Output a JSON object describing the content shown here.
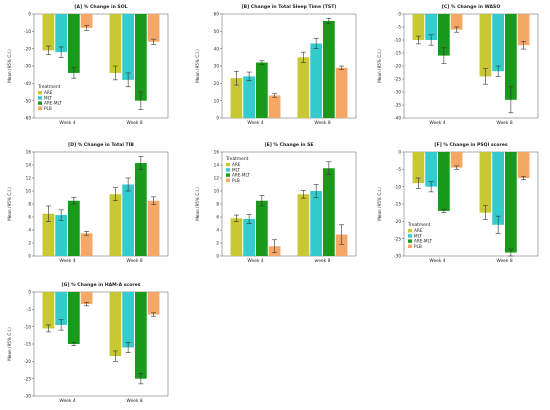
{
  "colors": {
    "ARE": "#c8c832",
    "MLT": "#33cccc",
    "ARE-MLT": "#1a9a1a",
    "PLB": "#f5a866"
  },
  "chart_data": [
    {
      "id": "A",
      "type": "bar",
      "title": "[A] % Change in SOL",
      "ylabel": "Mean (95% C.I.)",
      "xlabel": "",
      "categories": [
        "Week 4",
        "Week 8"
      ],
      "ylim": [
        -60,
        0
      ],
      "yticks": [
        0,
        -10,
        -20,
        -30,
        -40,
        -50,
        -60
      ],
      "series": [
        {
          "name": "ARE",
          "values": [
            -21,
            -34
          ],
          "err": [
            2.5,
            4
          ]
        },
        {
          "name": "MLT",
          "values": [
            -22,
            -38
          ],
          "err": [
            3,
            4
          ]
        },
        {
          "name": "ARE-MLT",
          "values": [
            -34,
            -50
          ],
          "err": [
            3,
            5
          ]
        },
        {
          "name": "PLB",
          "values": [
            -8,
            -16
          ],
          "err": [
            1.5,
            1.5
          ]
        }
      ],
      "legend": {
        "title": "Treatment",
        "position": "bottom-left",
        "items": [
          "ARE",
          "MLT",
          "ARE-MLT",
          "PLB"
        ]
      }
    },
    {
      "id": "B",
      "type": "bar",
      "title": "[B] Change in Total Sleep Time (TST)",
      "ylabel": "Mean (95% C.I.)",
      "xlabel": "",
      "categories": [
        "Week 4",
        "Week 8"
      ],
      "ylim": [
        0,
        60
      ],
      "yticks": [
        0,
        10,
        20,
        30,
        40,
        50,
        60
      ],
      "series": [
        {
          "name": "ARE",
          "values": [
            23,
            35
          ],
          "err": [
            4,
            3
          ]
        },
        {
          "name": "MLT",
          "values": [
            24,
            43
          ],
          "err": [
            2.5,
            3
          ]
        },
        {
          "name": "ARE-MLT",
          "values": [
            32,
            56
          ],
          "err": [
            1,
            1.5
          ]
        },
        {
          "name": "PLB",
          "values": [
            13,
            29
          ],
          "err": [
            1,
            1
          ]
        }
      ]
    },
    {
      "id": "C",
      "type": "bar",
      "title": "[C] % Change in WASO",
      "ylabel": "Mean (95% C.I.)",
      "xlabel": "",
      "categories": [
        "Week 4",
        "Week 8"
      ],
      "ylim": [
        -40,
        0
      ],
      "yticks": [
        0,
        -5,
        -10,
        -15,
        -20,
        -25,
        -30,
        -35,
        -40
      ],
      "series": [
        {
          "name": "ARE",
          "values": [
            -10,
            -24
          ],
          "err": [
            1.5,
            3
          ]
        },
        {
          "name": "MLT",
          "values": [
            -10,
            -22
          ],
          "err": [
            2,
            2
          ]
        },
        {
          "name": "ARE-MLT",
          "values": [
            -16,
            -33
          ],
          "err": [
            3,
            5
          ]
        },
        {
          "name": "PLB",
          "values": [
            -6,
            -12
          ],
          "err": [
            1,
            1.5
          ]
        }
      ]
    },
    {
      "id": "D",
      "type": "bar",
      "title": "[D] % Change in Total TIB",
      "ylabel": "Mean (95% C.I.)",
      "xlabel": "",
      "categories": [
        "Week 4",
        "Week 8"
      ],
      "ylim": [
        0,
        16
      ],
      "yticks": [
        0,
        2,
        4,
        6,
        8,
        10,
        12,
        14,
        16
      ],
      "series": [
        {
          "name": "ARE",
          "values": [
            6.5,
            9.5
          ],
          "err": [
            1.2,
            1
          ]
        },
        {
          "name": "MLT",
          "values": [
            6.3,
            11
          ],
          "err": [
            0.8,
            1
          ]
        },
        {
          "name": "ARE-MLT",
          "values": [
            8.5,
            14.3
          ],
          "err": [
            0.5,
            1
          ]
        },
        {
          "name": "PLB",
          "values": [
            3.5,
            8.5
          ],
          "err": [
            0.3,
            0.6
          ]
        }
      ]
    },
    {
      "id": "E",
      "type": "bar",
      "title": "[E] % Change in SE",
      "ylabel": "Mean (95% C.I.)",
      "xlabel": "",
      "categories": [
        "Week 4",
        "week 8"
      ],
      "ylim": [
        0,
        16
      ],
      "yticks": [
        0,
        2,
        4,
        6,
        8,
        10,
        12,
        14,
        16
      ],
      "series": [
        {
          "name": "ARE",
          "values": [
            5.8,
            9.5
          ],
          "err": [
            0.5,
            0.6
          ]
        },
        {
          "name": "MLT",
          "values": [
            5.7,
            10
          ],
          "err": [
            0.7,
            1
          ]
        },
        {
          "name": "ARE-MLT",
          "values": [
            8.5,
            13.5
          ],
          "err": [
            0.8,
            1
          ]
        },
        {
          "name": "PLB",
          "values": [
            1.5,
            3.3
          ],
          "err": [
            1,
            1.5
          ]
        }
      ],
      "legend": {
        "title": "Treatment",
        "position": "top-left",
        "items": [
          "ARE",
          "MLT",
          "ARE-MLT",
          "PLB"
        ]
      }
    },
    {
      "id": "F",
      "type": "bar",
      "title": "[F] % Change in PSQI scores",
      "ylabel": "Mean (95% C.I.)",
      "xlabel": "",
      "categories": [
        "Week 4",
        "Week 8"
      ],
      "ylim": [
        -30,
        0
      ],
      "yticks": [
        0,
        -5,
        -10,
        -15,
        -20,
        -25,
        -30
      ],
      "series": [
        {
          "name": "ARE",
          "values": [
            -9,
            -17.5
          ],
          "err": [
            1.5,
            2
          ]
        },
        {
          "name": "MLT",
          "values": [
            -10,
            -21
          ],
          "err": [
            1.5,
            2.5
          ]
        },
        {
          "name": "ARE-MLT",
          "values": [
            -17,
            -29
          ],
          "err": [
            0.5,
            1
          ]
        },
        {
          "name": "PLB",
          "values": [
            -4.5,
            -7.5
          ],
          "err": [
            0.5,
            0.5
          ]
        }
      ],
      "legend": {
        "title": "Treatment",
        "position": "bottom-left",
        "items": [
          "ARE",
          "MLT",
          "ARE-MLT",
          "PLB"
        ]
      }
    },
    {
      "id": "G",
      "type": "bar",
      "title": "[G] % Change in HAM-A scores",
      "ylabel": "Mean (95% C.I.)",
      "xlabel": "",
      "categories": [
        "Week 4",
        "Week 8"
      ],
      "ylim": [
        -30,
        0
      ],
      "yticks": [
        0,
        -5,
        -10,
        -15,
        -20,
        -25,
        -30
      ],
      "series": [
        {
          "name": "ARE",
          "values": [
            -10.5,
            -18.5
          ],
          "err": [
            1,
            1.5
          ]
        },
        {
          "name": "MLT",
          "values": [
            -9.5,
            -16
          ],
          "err": [
            1.5,
            1.5
          ]
        },
        {
          "name": "ARE-MLT",
          "values": [
            -15,
            -25
          ],
          "err": [
            0.5,
            1.5
          ]
        },
        {
          "name": "PLB",
          "values": [
            -3.5,
            -6.5
          ],
          "err": [
            0.5,
            0.5
          ]
        }
      ]
    }
  ]
}
